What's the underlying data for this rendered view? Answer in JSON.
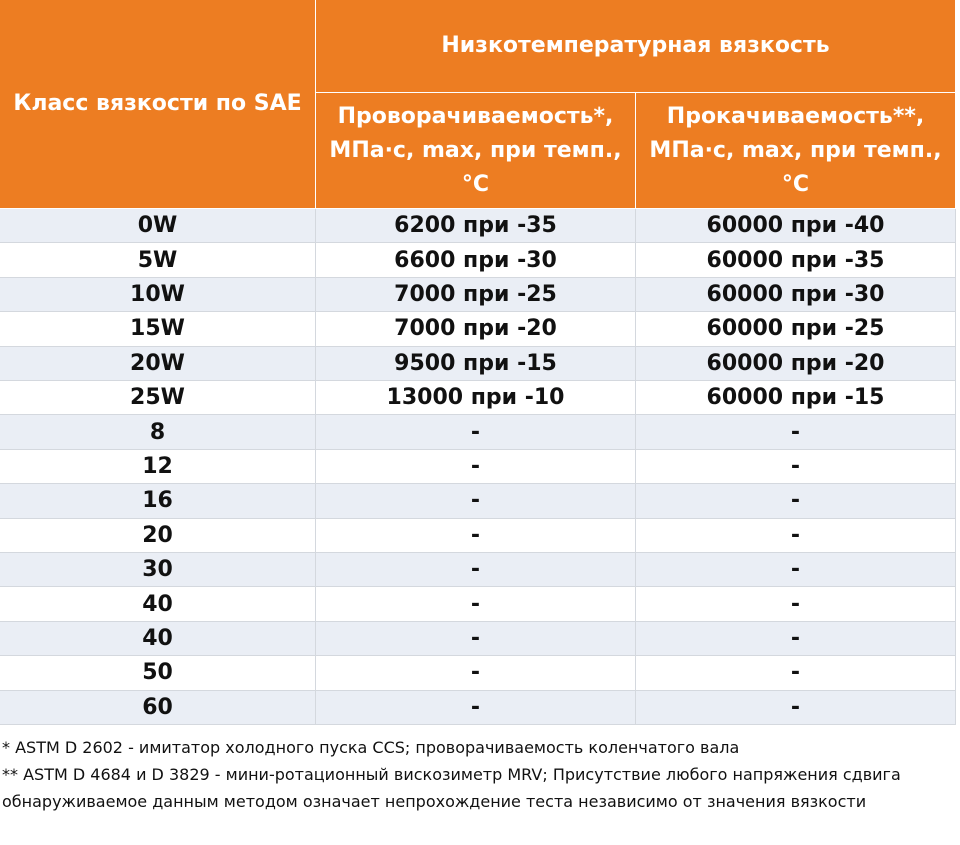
{
  "header": {
    "class_label": "Класс вязкости по SAE",
    "group_label": "Низкотемпературная вязкость",
    "col2": "Проворачиваемость*, МПа·с, max, при темп.,°C",
    "col3": "Прокачиваемость**, МПа·с, max, при темп.,°C"
  },
  "table": {
    "rows": [
      [
        "0W",
        "6200 при -35",
        "60000 при -40"
      ],
      [
        "5W",
        "6600 при -30",
        "60000 при -35"
      ],
      [
        "10W",
        "7000 при -25",
        "60000 при -30"
      ],
      [
        "15W",
        "7000 при -20",
        "60000 при -25"
      ],
      [
        "20W",
        "9500 при -15",
        "60000 при -20"
      ],
      [
        "25W",
        "13000 при -10",
        "60000 при -15"
      ],
      [
        "8",
        "-",
        "-"
      ],
      [
        "12",
        "-",
        "-"
      ],
      [
        "16",
        "-",
        "-"
      ],
      [
        "20",
        "-",
        "-"
      ],
      [
        "30",
        "-",
        "-"
      ],
      [
        "40",
        "-",
        "-"
      ],
      [
        "40",
        "-",
        "-"
      ],
      [
        "50",
        "-",
        "-"
      ],
      [
        "60",
        "-",
        "-"
      ]
    ]
  },
  "footnotes": [
    "* ASTM D 2602 - имитатор холодного пуска CCS; проворачиваемость коленчатого вала",
    "** ASTM D 4684 и D 3829 - мини-ротационный вискозиметр MRV; Присутствие любого напряжения сдвига обнаруживаемое данным методом означает непрохождение теста независимо от значения вязкости"
  ]
}
